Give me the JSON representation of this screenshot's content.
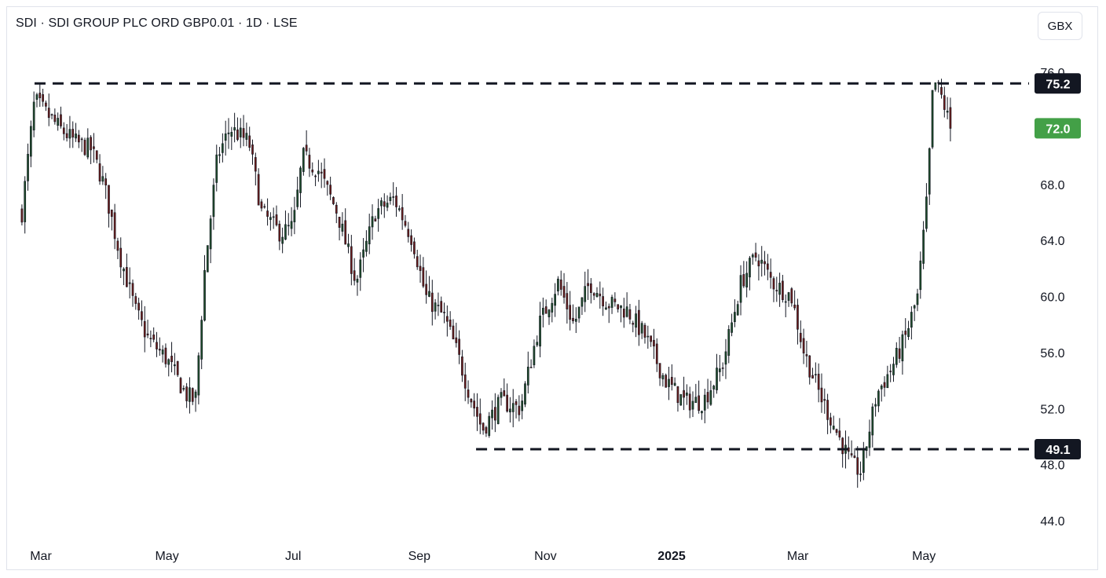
{
  "header": {
    "title": "SDI · SDI GROUP PLC ORD GBP0.01 · 1D · LSE",
    "currency": "GBX"
  },
  "colors": {
    "up": "#1e4d2b",
    "down": "#6b1b1b",
    "wick": "#131722",
    "level_line": "#131722",
    "last_price_bg": "#43a047",
    "level_badge_bg": "#131722"
  },
  "chart_data": {
    "type": "candlestick",
    "ylim": [
      43,
      77
    ],
    "yticks": [
      "76.0",
      "72.0",
      "68.0",
      "64.0",
      "60.0",
      "56.0",
      "52.0",
      "48.0",
      "44.0"
    ],
    "ytick_values": [
      76,
      72,
      68,
      64,
      60,
      56,
      52,
      48,
      44
    ],
    "xticks": [
      {
        "label": "Mar",
        "bold": false,
        "month_index": 0
      },
      {
        "label": "May",
        "bold": false,
        "month_index": 2
      },
      {
        "label": "Jul",
        "bold": false,
        "month_index": 4
      },
      {
        "label": "Sep",
        "bold": false,
        "month_index": 6
      },
      {
        "label": "Nov",
        "bold": false,
        "month_index": 8
      },
      {
        "label": "2025",
        "bold": true,
        "month_index": 10
      },
      {
        "label": "Mar",
        "bold": false,
        "month_index": 12
      },
      {
        "label": "May",
        "bold": false,
        "month_index": 14
      }
    ],
    "trading_days": 310,
    "levels": [
      {
        "label": "75.2",
        "value": 75.2,
        "start_month": -0.1
      },
      {
        "label": "49.1",
        "value": 49.1,
        "start_month": 6.9
      }
    ],
    "last_price": {
      "label": "72.0",
      "value": 72.0
    },
    "close_path": [
      [
        -0.3,
        66.0
      ],
      [
        -0.1,
        74.0
      ],
      [
        0.3,
        72.0
      ],
      [
        0.55,
        71.0
      ],
      [
        0.8,
        70.5
      ],
      [
        1.0,
        68.0
      ],
      [
        1.25,
        63.0
      ],
      [
        1.5,
        59.0
      ],
      [
        1.7,
        57.0
      ],
      [
        2.0,
        55.5
      ],
      [
        2.3,
        53.0
      ],
      [
        2.45,
        52.5
      ],
      [
        2.6,
        62.0
      ],
      [
        2.8,
        70.0
      ],
      [
        3.0,
        72.0
      ],
      [
        3.3,
        71.0
      ],
      [
        3.5,
        66.0
      ],
      [
        3.8,
        64.5
      ],
      [
        4.0,
        65.0
      ],
      [
        4.15,
        70.0
      ],
      [
        4.4,
        69.0
      ],
      [
        4.7,
        66.0
      ],
      [
        5.0,
        61.0
      ],
      [
        5.3,
        66.0
      ],
      [
        5.6,
        67.0
      ],
      [
        5.9,
        64.0
      ],
      [
        6.1,
        60.0
      ],
      [
        6.4,
        58.5
      ],
      [
        6.6,
        56.0
      ],
      [
        6.8,
        53.0
      ],
      [
        7.0,
        50.5
      ],
      [
        7.3,
        52.5
      ],
      [
        7.6,
        52.0
      ],
      [
        7.9,
        58.0
      ],
      [
        8.2,
        61.0
      ],
      [
        8.45,
        58.0
      ],
      [
        8.7,
        61.0
      ],
      [
        9.0,
        59.5
      ],
      [
        9.3,
        59.0
      ],
      [
        9.6,
        57.0
      ],
      [
        9.9,
        54.0
      ],
      [
        10.2,
        52.5
      ],
      [
        10.5,
        52.5
      ],
      [
        10.8,
        55.0
      ],
      [
        11.1,
        61.0
      ],
      [
        11.35,
        63.0
      ],
      [
        11.6,
        61.0
      ],
      [
        11.9,
        60.0
      ],
      [
        12.1,
        56.0
      ],
      [
        12.35,
        53.0
      ],
      [
        12.6,
        50.5
      ],
      [
        12.85,
        48.0
      ],
      [
        13.0,
        47.5
      ],
      [
        13.25,
        53.0
      ],
      [
        13.5,
        55.0
      ],
      [
        13.7,
        57.0
      ],
      [
        13.9,
        60.0
      ],
      [
        14.05,
        67.0
      ],
      [
        14.15,
        75.5
      ],
      [
        14.3,
        74.0
      ],
      [
        14.42,
        72.0
      ]
    ]
  }
}
